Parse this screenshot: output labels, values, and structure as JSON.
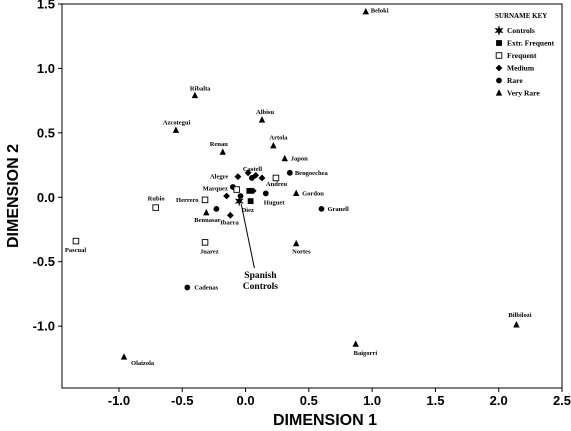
{
  "chart_data": {
    "type": "scatter",
    "xlabel": "DIMENSION 1",
    "ylabel": "DIMENSION 2",
    "xlim": [
      -1.45,
      2.5
    ],
    "ylim": [
      -1.48,
      1.5
    ],
    "xticks": [
      -1.0,
      -0.5,
      0.0,
      0.5,
      1.0,
      1.5,
      2.0,
      2.5
    ],
    "xtick_labels": [
      "-1.0",
      "-0.5",
      "0.0",
      "0.5",
      "1.0",
      "1.5",
      "2.0",
      "2.5"
    ],
    "yticks": [
      1.5,
      1.0,
      0.5,
      0.0,
      -0.5,
      -1.0
    ],
    "ytick_labels": [
      "1.5",
      "1.0",
      "0.5",
      "0.0",
      "-0.5",
      "-1.0"
    ],
    "legend": {
      "title": "SURNAME KEY",
      "position": "top-right",
      "entries": [
        {
          "category": "controls",
          "label": "Controls"
        },
        {
          "category": "extr_frequent",
          "label": "Extr. Frequent"
        },
        {
          "category": "frequent",
          "label": "Frequent"
        },
        {
          "category": "medium",
          "label": "Medium"
        },
        {
          "category": "rare",
          "label": "Rare"
        },
        {
          "category": "very_rare",
          "label": "Very Rare"
        }
      ]
    },
    "annotation": {
      "lines": [
        "Spanish",
        "Controls"
      ],
      "x": 0.07,
      "y": -0.62,
      "arrow_to": [
        -0.05,
        -0.03
      ]
    },
    "points": [
      {
        "name": "Beloki",
        "category": "very_rare",
        "x": 0.95,
        "y": 1.44
      },
      {
        "name": "Ribalta",
        "category": "very_rare",
        "x": -0.4,
        "y": 0.79
      },
      {
        "name": "Albisu",
        "category": "very_rare",
        "x": 0.13,
        "y": 0.6
      },
      {
        "name": "Azcotegui",
        "category": "very_rare",
        "x": -0.55,
        "y": 0.52
      },
      {
        "name": "Artola",
        "category": "very_rare",
        "x": 0.22,
        "y": 0.4
      },
      {
        "name": "Renau",
        "category": "very_rare",
        "x": -0.18,
        "y": 0.35
      },
      {
        "name": "Japon",
        "category": "very_rare",
        "x": 0.31,
        "y": 0.3
      },
      {
        "name": "Gordon",
        "category": "very_rare",
        "x": 0.4,
        "y": 0.03
      },
      {
        "name": "Bennasar",
        "category": "very_rare",
        "x": -0.31,
        "y": -0.12
      },
      {
        "name": "Nortes",
        "category": "very_rare",
        "x": 0.4,
        "y": -0.36
      },
      {
        "name": "Baigorri",
        "category": "very_rare",
        "x": 0.87,
        "y": -1.14
      },
      {
        "name": "Bilbilozi",
        "category": "very_rare",
        "x": 2.14,
        "y": -0.99
      },
      {
        "name": "Olaizola",
        "category": "very_rare",
        "x": -0.96,
        "y": -1.24
      },
      {
        "name": "Castell",
        "category": "rare",
        "x": 0.05,
        "y": 0.15
      },
      {
        "name": "Bengoechea",
        "category": "rare",
        "x": 0.35,
        "y": 0.19
      },
      {
        "name": "Granell",
        "category": "rare",
        "x": 0.6,
        "y": -0.09
      },
      {
        "name": "Huguet",
        "category": "rare",
        "x": 0.16,
        "y": 0.03
      },
      {
        "name": "Cadenas",
        "category": "rare",
        "x": -0.46,
        "y": -0.7
      },
      {
        "name": "",
        "category": "rare",
        "x": -0.1,
        "y": 0.08
      },
      {
        "name": "",
        "category": "rare",
        "x": -0.23,
        "y": -0.09
      },
      {
        "name": "",
        "category": "rare",
        "x": -0.04,
        "y": 0.01
      },
      {
        "name": "Alegre",
        "category": "medium",
        "x": -0.06,
        "y": 0.16
      },
      {
        "name": "",
        "category": "medium",
        "x": 0.02,
        "y": 0.19
      },
      {
        "name": "",
        "category": "medium",
        "x": 0.08,
        "y": 0.17
      },
      {
        "name": "",
        "category": "medium",
        "x": 0.13,
        "y": 0.15
      },
      {
        "name": "",
        "category": "medium",
        "x": -0.15,
        "y": 0.01
      },
      {
        "name": "Ibarra",
        "category": "medium",
        "x": -0.12,
        "y": -0.14
      },
      {
        "name": "",
        "category": "medium",
        "x": 0.06,
        "y": 0.05
      },
      {
        "name": "Diez",
        "category": "extr_frequent",
        "x": 0.04,
        "y": -0.03
      },
      {
        "name": "",
        "category": "extr_frequent",
        "x": 0.03,
        "y": 0.05
      },
      {
        "name": "Andreu",
        "category": "frequent",
        "x": 0.24,
        "y": 0.15
      },
      {
        "name": "Marquez",
        "category": "frequent",
        "x": -0.07,
        "y": 0.06
      },
      {
        "name": "Herrero",
        "category": "frequent",
        "x": -0.32,
        "y": -0.02
      },
      {
        "name": "Rubio",
        "category": "frequent",
        "x": -0.71,
        "y": -0.08
      },
      {
        "name": "Pascual",
        "category": "frequent",
        "x": -1.34,
        "y": -0.34
      },
      {
        "name": "Juarez",
        "category": "frequent",
        "x": -0.32,
        "y": -0.35
      },
      {
        "name": "Spanish Controls",
        "category": "controls",
        "x": -0.05,
        "y": -0.03
      }
    ]
  }
}
